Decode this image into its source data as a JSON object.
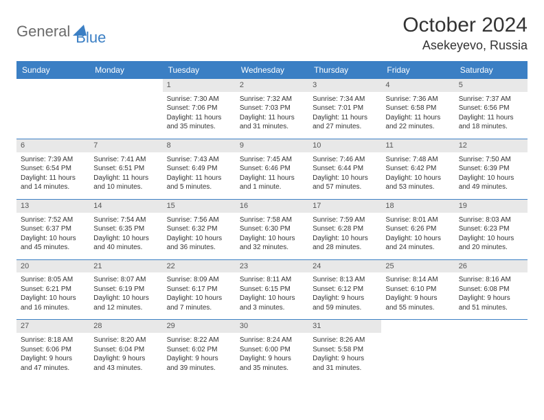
{
  "brand": {
    "part1": "General",
    "part2": "Blue"
  },
  "title": "October 2024",
  "location": "Asekeyevo, Russia",
  "colors": {
    "accent": "#3b7fc4",
    "header_text": "#ffffff",
    "daynum_bg": "#e8e8e8",
    "daynum_text": "#555555",
    "body_text": "#333333",
    "background": "#ffffff",
    "logo_gray": "#6b6b6b"
  },
  "day_headers": [
    "Sunday",
    "Monday",
    "Tuesday",
    "Wednesday",
    "Thursday",
    "Friday",
    "Saturday"
  ],
  "weeks": [
    [
      {
        "empty": true
      },
      {
        "empty": true
      },
      {
        "day": "1",
        "sunrise": "Sunrise: 7:30 AM",
        "sunset": "Sunset: 7:06 PM",
        "daylight": "Daylight: 11 hours and 35 minutes."
      },
      {
        "day": "2",
        "sunrise": "Sunrise: 7:32 AM",
        "sunset": "Sunset: 7:03 PM",
        "daylight": "Daylight: 11 hours and 31 minutes."
      },
      {
        "day": "3",
        "sunrise": "Sunrise: 7:34 AM",
        "sunset": "Sunset: 7:01 PM",
        "daylight": "Daylight: 11 hours and 27 minutes."
      },
      {
        "day": "4",
        "sunrise": "Sunrise: 7:36 AM",
        "sunset": "Sunset: 6:58 PM",
        "daylight": "Daylight: 11 hours and 22 minutes."
      },
      {
        "day": "5",
        "sunrise": "Sunrise: 7:37 AM",
        "sunset": "Sunset: 6:56 PM",
        "daylight": "Daylight: 11 hours and 18 minutes."
      }
    ],
    [
      {
        "day": "6",
        "sunrise": "Sunrise: 7:39 AM",
        "sunset": "Sunset: 6:54 PM",
        "daylight": "Daylight: 11 hours and 14 minutes."
      },
      {
        "day": "7",
        "sunrise": "Sunrise: 7:41 AM",
        "sunset": "Sunset: 6:51 PM",
        "daylight": "Daylight: 11 hours and 10 minutes."
      },
      {
        "day": "8",
        "sunrise": "Sunrise: 7:43 AM",
        "sunset": "Sunset: 6:49 PM",
        "daylight": "Daylight: 11 hours and 5 minutes."
      },
      {
        "day": "9",
        "sunrise": "Sunrise: 7:45 AM",
        "sunset": "Sunset: 6:46 PM",
        "daylight": "Daylight: 11 hours and 1 minute."
      },
      {
        "day": "10",
        "sunrise": "Sunrise: 7:46 AM",
        "sunset": "Sunset: 6:44 PM",
        "daylight": "Daylight: 10 hours and 57 minutes."
      },
      {
        "day": "11",
        "sunrise": "Sunrise: 7:48 AM",
        "sunset": "Sunset: 6:42 PM",
        "daylight": "Daylight: 10 hours and 53 minutes."
      },
      {
        "day": "12",
        "sunrise": "Sunrise: 7:50 AM",
        "sunset": "Sunset: 6:39 PM",
        "daylight": "Daylight: 10 hours and 49 minutes."
      }
    ],
    [
      {
        "day": "13",
        "sunrise": "Sunrise: 7:52 AM",
        "sunset": "Sunset: 6:37 PM",
        "daylight": "Daylight: 10 hours and 45 minutes."
      },
      {
        "day": "14",
        "sunrise": "Sunrise: 7:54 AM",
        "sunset": "Sunset: 6:35 PM",
        "daylight": "Daylight: 10 hours and 40 minutes."
      },
      {
        "day": "15",
        "sunrise": "Sunrise: 7:56 AM",
        "sunset": "Sunset: 6:32 PM",
        "daylight": "Daylight: 10 hours and 36 minutes."
      },
      {
        "day": "16",
        "sunrise": "Sunrise: 7:58 AM",
        "sunset": "Sunset: 6:30 PM",
        "daylight": "Daylight: 10 hours and 32 minutes."
      },
      {
        "day": "17",
        "sunrise": "Sunrise: 7:59 AM",
        "sunset": "Sunset: 6:28 PM",
        "daylight": "Daylight: 10 hours and 28 minutes."
      },
      {
        "day": "18",
        "sunrise": "Sunrise: 8:01 AM",
        "sunset": "Sunset: 6:26 PM",
        "daylight": "Daylight: 10 hours and 24 minutes."
      },
      {
        "day": "19",
        "sunrise": "Sunrise: 8:03 AM",
        "sunset": "Sunset: 6:23 PM",
        "daylight": "Daylight: 10 hours and 20 minutes."
      }
    ],
    [
      {
        "day": "20",
        "sunrise": "Sunrise: 8:05 AM",
        "sunset": "Sunset: 6:21 PM",
        "daylight": "Daylight: 10 hours and 16 minutes."
      },
      {
        "day": "21",
        "sunrise": "Sunrise: 8:07 AM",
        "sunset": "Sunset: 6:19 PM",
        "daylight": "Daylight: 10 hours and 12 minutes."
      },
      {
        "day": "22",
        "sunrise": "Sunrise: 8:09 AM",
        "sunset": "Sunset: 6:17 PM",
        "daylight": "Daylight: 10 hours and 7 minutes."
      },
      {
        "day": "23",
        "sunrise": "Sunrise: 8:11 AM",
        "sunset": "Sunset: 6:15 PM",
        "daylight": "Daylight: 10 hours and 3 minutes."
      },
      {
        "day": "24",
        "sunrise": "Sunrise: 8:13 AM",
        "sunset": "Sunset: 6:12 PM",
        "daylight": "Daylight: 9 hours and 59 minutes."
      },
      {
        "day": "25",
        "sunrise": "Sunrise: 8:14 AM",
        "sunset": "Sunset: 6:10 PM",
        "daylight": "Daylight: 9 hours and 55 minutes."
      },
      {
        "day": "26",
        "sunrise": "Sunrise: 8:16 AM",
        "sunset": "Sunset: 6:08 PM",
        "daylight": "Daylight: 9 hours and 51 minutes."
      }
    ],
    [
      {
        "day": "27",
        "sunrise": "Sunrise: 8:18 AM",
        "sunset": "Sunset: 6:06 PM",
        "daylight": "Daylight: 9 hours and 47 minutes."
      },
      {
        "day": "28",
        "sunrise": "Sunrise: 8:20 AM",
        "sunset": "Sunset: 6:04 PM",
        "daylight": "Daylight: 9 hours and 43 minutes."
      },
      {
        "day": "29",
        "sunrise": "Sunrise: 8:22 AM",
        "sunset": "Sunset: 6:02 PM",
        "daylight": "Daylight: 9 hours and 39 minutes."
      },
      {
        "day": "30",
        "sunrise": "Sunrise: 8:24 AM",
        "sunset": "Sunset: 6:00 PM",
        "daylight": "Daylight: 9 hours and 35 minutes."
      },
      {
        "day": "31",
        "sunrise": "Sunrise: 8:26 AM",
        "sunset": "Sunset: 5:58 PM",
        "daylight": "Daylight: 9 hours and 31 minutes."
      },
      {
        "empty": true
      },
      {
        "empty": true
      }
    ]
  ]
}
